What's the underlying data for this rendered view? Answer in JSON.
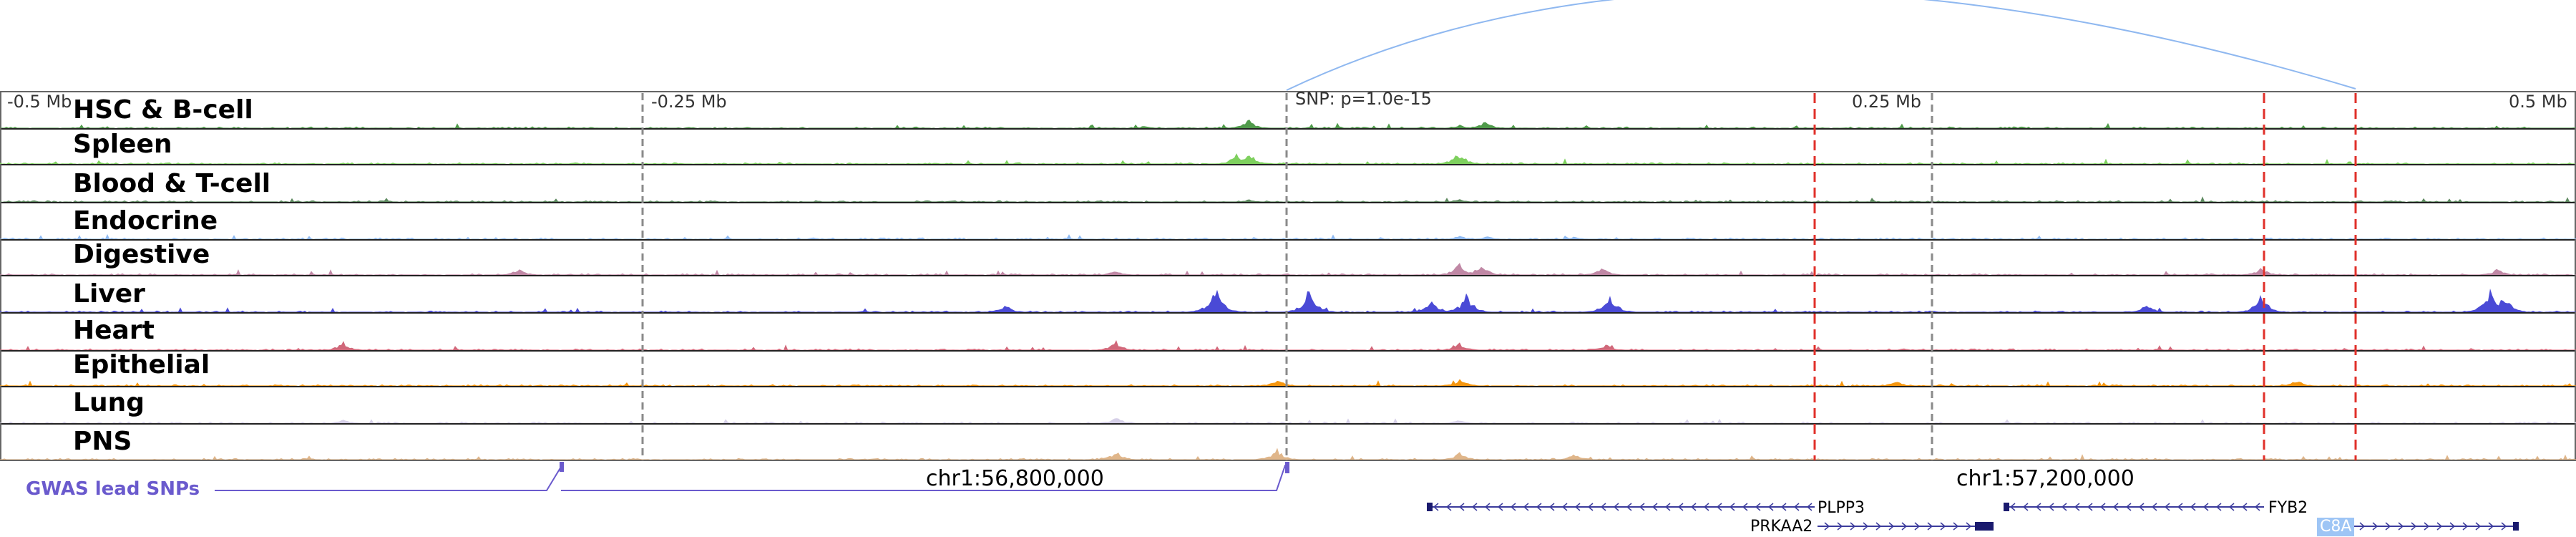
{
  "scale": {
    "ticks": [
      "-0.5 Mb",
      "-0.25 Mb",
      "0.25 Mb",
      "0.5 Mb"
    ]
  },
  "snp_label": "SNP: p=1.0e-15",
  "tracks": [
    {
      "name": "HSC & B-cell",
      "color": "#4f9a4a"
    },
    {
      "name": "Spleen",
      "color": "#7ed05e"
    },
    {
      "name": "Blood & T-cell",
      "color": "#5e8a60"
    },
    {
      "name": "Endocrine",
      "color": "#8fbaf2"
    },
    {
      "name": "Digestive",
      "color": "#c088a5"
    },
    {
      "name": "Liver",
      "color": "#4a4ad6"
    },
    {
      "name": "Heart",
      "color": "#d0687a"
    },
    {
      "name": "Epithelial",
      "color": "#f5960f"
    },
    {
      "name": "Lung",
      "color": "#d6d0e8"
    },
    {
      "name": "PNS",
      "color": "#e0b68a"
    }
  ],
  "gwas": {
    "label": "GWAS lead SNPs",
    "color": "#6a5acd"
  },
  "coordinates": [
    "chr1:56,800,000",
    "chr1:57,200,000"
  ],
  "genes": [
    {
      "name": "PLPP3",
      "strand": "-"
    },
    {
      "name": "PRKAA2",
      "strand": "+"
    },
    {
      "name": "FYB2",
      "strand": "-"
    },
    {
      "name": "C8A",
      "strand": "+"
    }
  ]
}
